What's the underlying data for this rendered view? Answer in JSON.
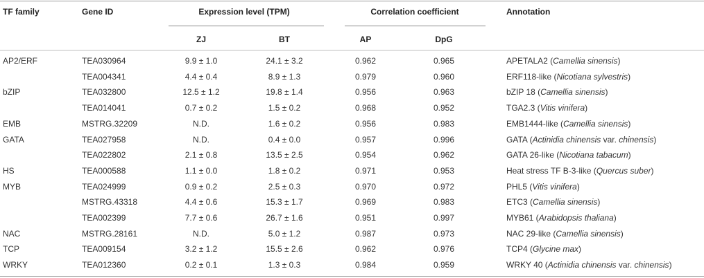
{
  "table": {
    "header": {
      "tf_family": "TF family",
      "gene_id": "Gene ID",
      "expression": "Expression level (TPM)",
      "correlation": "Correlation coefficient",
      "annotation": "Annotation",
      "zj": "ZJ",
      "bt": "BT",
      "ap": "AP",
      "dpg": "DpG"
    },
    "rows": [
      [
        "AP2/ERF",
        "TEA030964",
        "9.9 ± 1.0",
        "24.1 ± 3.2",
        "0.962",
        "0.965",
        [
          {
            "text": "APETALA2 ("
          },
          {
            "text": "Camellia sinensis",
            "italic": true
          },
          {
            "text": ")"
          }
        ]
      ],
      [
        null,
        "TEA004341",
        "4.4 ± 0.4",
        "8.9 ± 1.3",
        "0.979",
        "0.960",
        [
          {
            "text": "ERF118-like ("
          },
          {
            "text": "Nicotiana sylvestris",
            "italic": true
          },
          {
            "text": ")"
          }
        ]
      ],
      [
        "bZIP",
        "TEA032800",
        "12.5 ± 1.2",
        "19.8 ± 1.4",
        "0.956",
        "0.963",
        [
          {
            "text": "bZIP 18 ("
          },
          {
            "text": "Camellia sinensis",
            "italic": true
          },
          {
            "text": ")"
          }
        ]
      ],
      [
        null,
        "TEA014041",
        "0.7 ± 0.2",
        "1.5 ± 0.2",
        "0.968",
        "0.952",
        [
          {
            "text": "TGA2.3 ("
          },
          {
            "text": "Vitis vinifera",
            "italic": true
          },
          {
            "text": ")"
          }
        ]
      ],
      [
        "EMB",
        "MSTRG.32209",
        "N.D.",
        "1.6 ± 0.2",
        "0.956",
        "0.983",
        [
          {
            "text": "EMB1444-like ("
          },
          {
            "text": "Camellia sinensis",
            "italic": true
          },
          {
            "text": ")"
          }
        ]
      ],
      [
        "GATA",
        "TEA027958",
        "N.D.",
        "0.4 ± 0.0",
        "0.957",
        "0.996",
        [
          {
            "text": "GATA ("
          },
          {
            "text": "Actinidia chinensis",
            "italic": true
          },
          {
            "text": " var. "
          },
          {
            "text": "chinensis",
            "italic": true
          },
          {
            "text": ")"
          }
        ]
      ],
      [
        null,
        "TEA022802",
        "2.1 ± 0.8",
        "13.5 ± 2.5",
        "0.954",
        "0.962",
        [
          {
            "text": "GATA 26-like ("
          },
          {
            "text": "Nicotiana tabacum",
            "italic": true
          },
          {
            "text": ")"
          }
        ]
      ],
      [
        "HS",
        "TEA000588",
        "1.1 ± 0.0",
        "1.8 ± 0.2",
        "0.971",
        "0.953",
        [
          {
            "text": "Heat stress TF B-3-like ("
          },
          {
            "text": "Quercus suber",
            "italic": true
          },
          {
            "text": ")"
          }
        ]
      ],
      [
        "MYB",
        "TEA024999",
        "0.9 ± 0.2",
        "2.5 ± 0.3",
        "0.970",
        "0.972",
        [
          {
            "text": "PHL5 ("
          },
          {
            "text": "Vitis vinifera",
            "italic": true
          },
          {
            "text": ")"
          }
        ]
      ],
      [
        null,
        "MSTRG.43318",
        "4.4 ± 0.6",
        "15.3 ± 1.7",
        "0.969",
        "0.983",
        [
          {
            "text": "ETC3 ("
          },
          {
            "text": "Camellia sinensis",
            "italic": true
          },
          {
            "text": ")"
          }
        ]
      ],
      [
        null,
        "TEA002399",
        "7.7 ± 0.6",
        "26.7 ± 1.6",
        "0.951",
        "0.997",
        [
          {
            "text": "MYB61 ("
          },
          {
            "text": "Arabidopsis thaliana",
            "italic": true
          },
          {
            "text": ")"
          }
        ]
      ],
      [
        "NAC",
        "MSTRG.28161",
        "N.D.",
        "5.0 ± 1.2",
        "0.987",
        "0.973",
        [
          {
            "text": "NAC 29-like ("
          },
          {
            "text": "Camellia sinensis",
            "italic": true
          },
          {
            "text": ")"
          }
        ]
      ],
      [
        "TCP",
        "TEA009154",
        "3.2 ± 1.2",
        "15.5 ± 2.6",
        "0.962",
        "0.976",
        [
          {
            "text": "TCP4 ("
          },
          {
            "text": "Glycine max",
            "italic": true
          },
          {
            "text": ")"
          }
        ]
      ],
      [
        "WRKY",
        "TEA012360",
        "0.2 ± 0.1",
        "1.3 ± 0.3",
        "0.984",
        "0.959",
        [
          {
            "text": "WRKY 40 ("
          },
          {
            "text": "Actinidia chinensis",
            "italic": true
          },
          {
            "text": " var. "
          },
          {
            "text": "chinensis",
            "italic": true
          },
          {
            "text": ")"
          }
        ]
      ]
    ]
  }
}
